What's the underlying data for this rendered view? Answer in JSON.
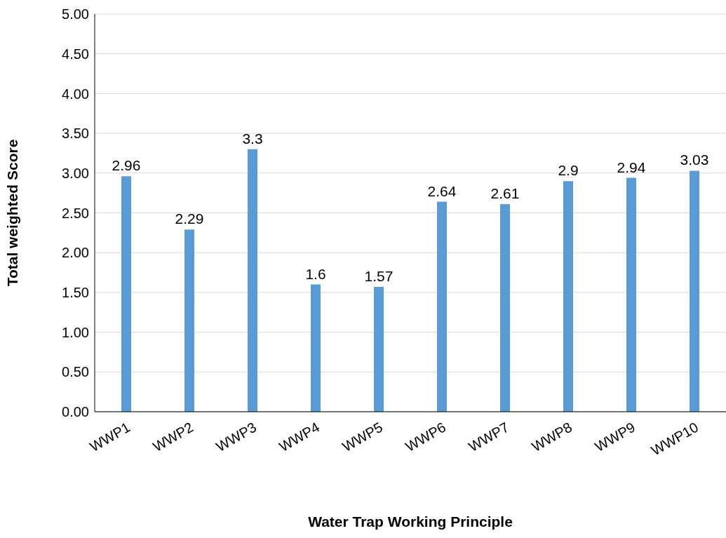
{
  "chart_data": {
    "type": "bar",
    "xlabel": "Water Trap Working Principle",
    "ylabel": "Total weighted Score",
    "categories": [
      "WWP1",
      "WWP2",
      "WWP3",
      "WWP4",
      "WWP5",
      "WWP6",
      "WWP7",
      "WWP8",
      "WWP9",
      "WWP10"
    ],
    "values": [
      2.96,
      2.29,
      3.3,
      1.6,
      1.57,
      2.64,
      2.61,
      2.9,
      2.94,
      3.03
    ],
    "color": "#5b9bd5",
    "ylim": [
      0,
      5
    ],
    "yticks": [
      {
        "value": 0,
        "label": "0.00"
      },
      {
        "value": 0.5,
        "label": "0.50"
      },
      {
        "value": 1,
        "label": "1.00"
      },
      {
        "value": 1.5,
        "label": "1.50"
      },
      {
        "value": 2,
        "label": "2.00"
      },
      {
        "value": 2.5,
        "label": "2.50"
      },
      {
        "value": 3,
        "label": "3.00"
      },
      {
        "value": 3.5,
        "label": "3.50"
      },
      {
        "value": 4,
        "label": "4.00"
      },
      {
        "value": 4.5,
        "label": "4.50"
      },
      {
        "value": 5,
        "label": "5.00"
      }
    ],
    "grid": "y",
    "data_labels": true
  }
}
